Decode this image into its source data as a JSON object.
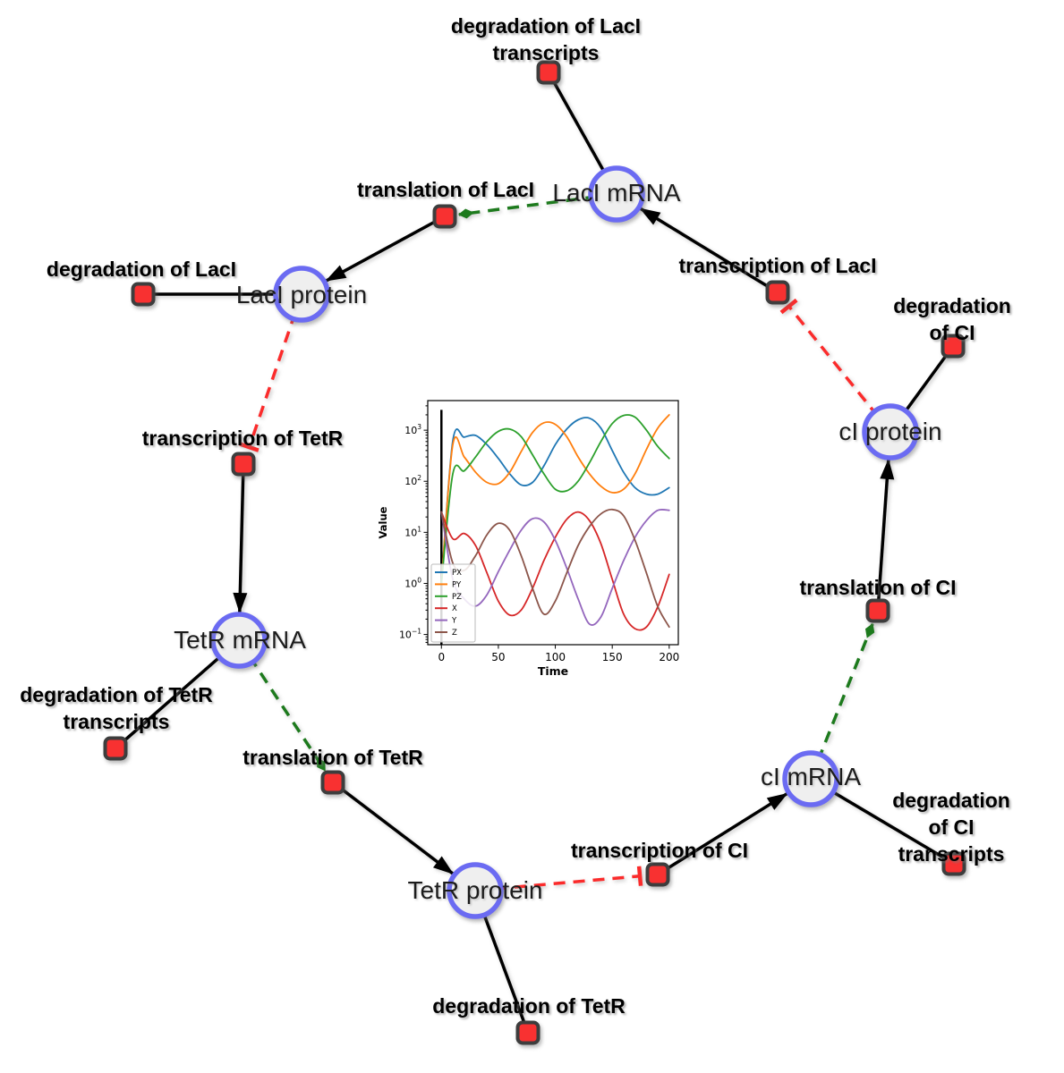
{
  "figure": {
    "background": "#ffffff"
  },
  "diagram": {
    "species": [
      {
        "id": "laci_mrna",
        "label": "LacI mRNA"
      },
      {
        "id": "laci_protein",
        "label": "LacI protein"
      },
      {
        "id": "tetr_mrna",
        "label": "TetR mRNA"
      },
      {
        "id": "tetr_protein",
        "label": "TetR protein"
      },
      {
        "id": "ci_mrna",
        "label": "cI mRNA"
      },
      {
        "id": "ci_protein",
        "label": "cI protein"
      }
    ],
    "reactions": [
      {
        "id": "deg_laci_tx",
        "label": "degradation of LacI\ntranscripts"
      },
      {
        "id": "transl_laci",
        "label": "translation of LacI"
      },
      {
        "id": "deg_laci",
        "label": "degradation of LacI"
      },
      {
        "id": "tx_laci",
        "label": "transcription of LacI"
      },
      {
        "id": "deg_ci",
        "label": "degradation of CI"
      },
      {
        "id": "tx_tetr",
        "label": "transcription of TetR"
      },
      {
        "id": "transl_ci",
        "label": "translation of CI"
      },
      {
        "id": "deg_tetr_tx",
        "label": "degradation of TetR\ntranscripts"
      },
      {
        "id": "transl_tetr",
        "label": "translation of TetR"
      },
      {
        "id": "deg_ci_tx",
        "label": "degradation of CI\ntranscripts"
      },
      {
        "id": "tx_ci",
        "label": "transcription of CI"
      },
      {
        "id": "deg_tetr",
        "label": "degradation of TetR"
      }
    ],
    "edges": [
      {
        "from": "laci_mrna",
        "to": "deg_laci_tx",
        "type": "reactant"
      },
      {
        "from": "laci_mrna",
        "to": "transl_laci",
        "type": "modifier"
      },
      {
        "from": "transl_laci",
        "to": "laci_protein",
        "type": "product"
      },
      {
        "from": "laci_protein",
        "to": "deg_laci",
        "type": "reactant"
      },
      {
        "from": "laci_protein",
        "to": "tx_tetr",
        "type": "inhibition"
      },
      {
        "from": "tx_tetr",
        "to": "tetr_mrna",
        "type": "product"
      },
      {
        "from": "tetr_mrna",
        "to": "deg_tetr_tx",
        "type": "reactant"
      },
      {
        "from": "tetr_mrna",
        "to": "transl_tetr",
        "type": "modifier"
      },
      {
        "from": "transl_tetr",
        "to": "tetr_protein",
        "type": "product"
      },
      {
        "from": "tetr_protein",
        "to": "deg_tetr",
        "type": "reactant"
      },
      {
        "from": "tetr_protein",
        "to": "tx_ci",
        "type": "inhibition"
      },
      {
        "from": "tx_ci",
        "to": "ci_mrna",
        "type": "product"
      },
      {
        "from": "ci_mrna",
        "to": "deg_ci_tx",
        "type": "reactant"
      },
      {
        "from": "ci_mrna",
        "to": "transl_ci",
        "type": "modifier"
      },
      {
        "from": "transl_ci",
        "to": "ci_protein",
        "type": "product"
      },
      {
        "from": "ci_protein",
        "to": "deg_ci",
        "type": "reactant"
      },
      {
        "from": "ci_protein",
        "to": "tx_laci",
        "type": "inhibition"
      },
      {
        "from": "tx_laci",
        "to": "laci_mrna",
        "type": "product"
      }
    ],
    "colors": {
      "species_fill": "#efefef",
      "species_border": "#6b6bf2",
      "reaction_fill": "#f83131",
      "reaction_border": "#3d3d3d",
      "edge_black": "#000000",
      "edge_green": "#1d7a1d",
      "edge_red": "#fb2b2b"
    }
  },
  "chart_data": {
    "type": "line",
    "title": "",
    "xlabel": "Time",
    "ylabel": "Value",
    "xticks": [
      0,
      50,
      100,
      150,
      200
    ],
    "ytick_exponents": [
      -1,
      0,
      1,
      2,
      3
    ],
    "xlim": [
      -12,
      208
    ],
    "ylim_log10": [
      -1.2,
      3.58
    ],
    "yscale": "log",
    "grid": false,
    "legend_position": "lower left",
    "vertical_line_x": 0,
    "x": [
      0,
      10,
      20,
      30,
      40,
      50,
      60,
      70,
      80,
      90,
      100,
      110,
      120,
      130,
      140,
      150,
      160,
      170,
      180,
      190,
      200
    ],
    "series": [
      {
        "name": "PX",
        "color": "#1f77b4",
        "values": [
          1,
          620,
          730,
          790,
          520,
          280,
          140,
          85,
          95,
          200,
          520,
          1050,
          1600,
          1720,
          1100,
          400,
          150,
          75,
          56,
          56,
          75
        ]
      },
      {
        "name": "PY",
        "color": "#ff7f0e",
        "values": [
          1,
          520,
          300,
          150,
          95,
          90,
          150,
          380,
          900,
          1400,
          1300,
          750,
          300,
          140,
          80,
          60,
          70,
          140,
          420,
          1100,
          2000
        ]
      },
      {
        "name": "PZ",
        "color": "#2ca02c",
        "values": [
          1,
          140,
          160,
          300,
          600,
          950,
          1050,
          750,
          330,
          140,
          70,
          65,
          100,
          230,
          600,
          1350,
          1950,
          1800,
          1000,
          480,
          280
        ]
      },
      {
        "name": "X",
        "color": "#d62728",
        "values": [
          25,
          7.5,
          9.5,
          5.5,
          1.6,
          0.45,
          0.24,
          0.3,
          0.8,
          2.8,
          8,
          18,
          25,
          17,
          6,
          1.2,
          0.25,
          0.13,
          0.14,
          0.35,
          1.5
        ]
      },
      {
        "name": "Y",
        "color": "#9467bd",
        "values": [
          25,
          1.2,
          0.5,
          0.36,
          0.6,
          1.7,
          4.5,
          11,
          18.5,
          16,
          7,
          2,
          0.5,
          0.16,
          0.22,
          0.8,
          2.8,
          8,
          17,
          27,
          27
        ]
      },
      {
        "name": "Z",
        "color": "#8c564b",
        "values": [
          25,
          2.5,
          1.8,
          3.5,
          9,
          15,
          11,
          3.5,
          0.8,
          0.25,
          0.45,
          1.6,
          5.5,
          13,
          23,
          28,
          21,
          7,
          1.6,
          0.35,
          0.14
        ]
      }
    ]
  }
}
